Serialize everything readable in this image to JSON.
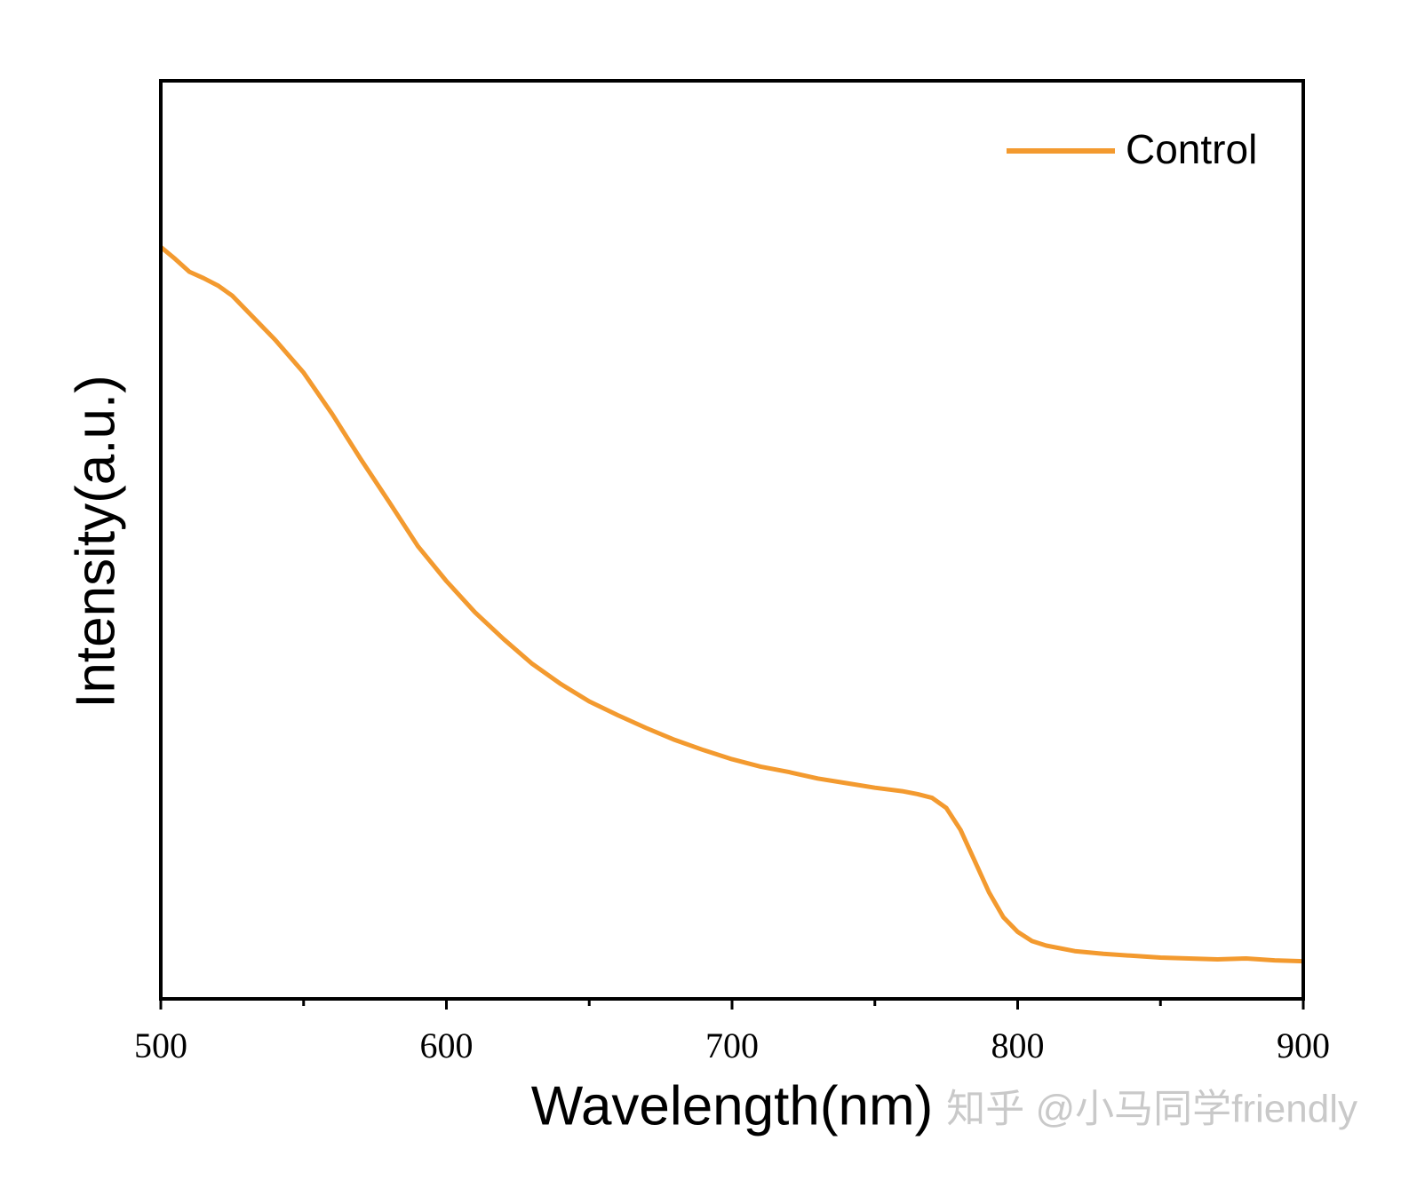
{
  "chart_data": {
    "type": "line",
    "xlabel": "Wavelength(nm)",
    "ylabel": "Intensity(a.u.)",
    "watermark": "知乎 @小马同学friendly",
    "x": [
      500,
      505,
      510,
      515,
      520,
      525,
      530,
      540,
      550,
      560,
      570,
      580,
      590,
      600,
      610,
      620,
      630,
      640,
      650,
      660,
      670,
      680,
      690,
      700,
      710,
      720,
      730,
      740,
      750,
      760,
      765,
      770,
      775,
      780,
      785,
      790,
      795,
      800,
      805,
      810,
      820,
      830,
      840,
      850,
      860,
      870,
      880,
      890,
      900
    ],
    "series": [
      {
        "name": "Control",
        "color": "#f39a2f",
        "values": [
          81.9,
          80.6,
          79.2,
          78.5,
          77.7,
          76.6,
          75.0,
          71.8,
          68.2,
          63.7,
          58.8,
          54.1,
          49.3,
          45.5,
          42.1,
          39.2,
          36.5,
          34.3,
          32.4,
          30.9,
          29.5,
          28.2,
          27.1,
          26.1,
          25.3,
          24.7,
          24.0,
          23.5,
          23.0,
          22.6,
          22.3,
          21.9,
          20.8,
          18.4,
          15.0,
          11.6,
          8.9,
          7.3,
          6.3,
          5.8,
          5.2,
          4.9,
          4.7,
          4.5,
          4.4,
          4.3,
          4.4,
          4.2,
          4.1
        ]
      }
    ],
    "xlim": [
      500,
      900
    ],
    "xticks": [
      500,
      600,
      700,
      800,
      900
    ],
    "xminorticks": [
      550,
      650,
      750,
      850
    ],
    "ylim": [
      0,
      100
    ],
    "legend": "upper right",
    "grid": false
  }
}
